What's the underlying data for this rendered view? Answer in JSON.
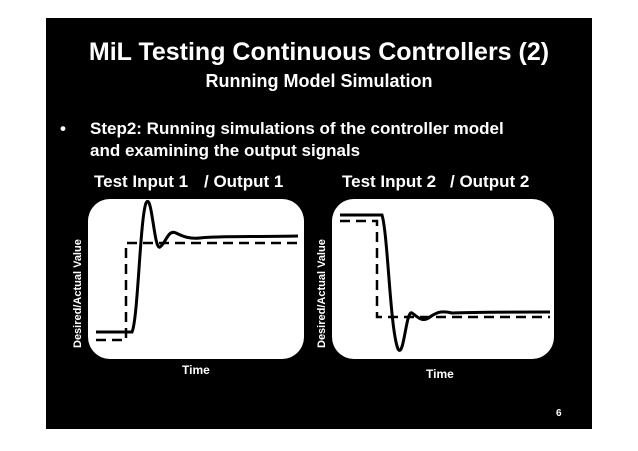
{
  "slide": {
    "title": "MiL Testing Continuous Controllers (2)",
    "subtitle": "Running Model Simulation",
    "bullet_marker": "•",
    "bullet_line1": "Step2: Running simulations of the controller model",
    "bullet_line2": "and examining the output signals",
    "page_number": "6"
  },
  "panels": [
    {
      "input_label": "Test Input 1",
      "output_label": "/ Output 1",
      "ylabel": "Desired/Actual Value",
      "xlabel": "Time"
    },
    {
      "input_label": "Test Input 2",
      "output_label": "/ Output 2",
      "ylabel": "Desired/Actual Value",
      "xlabel": "Time"
    }
  ],
  "colors": {
    "background": "#000000",
    "text": "#ffffff",
    "plot_background": "#ffffff",
    "signal": "#000000"
  }
}
